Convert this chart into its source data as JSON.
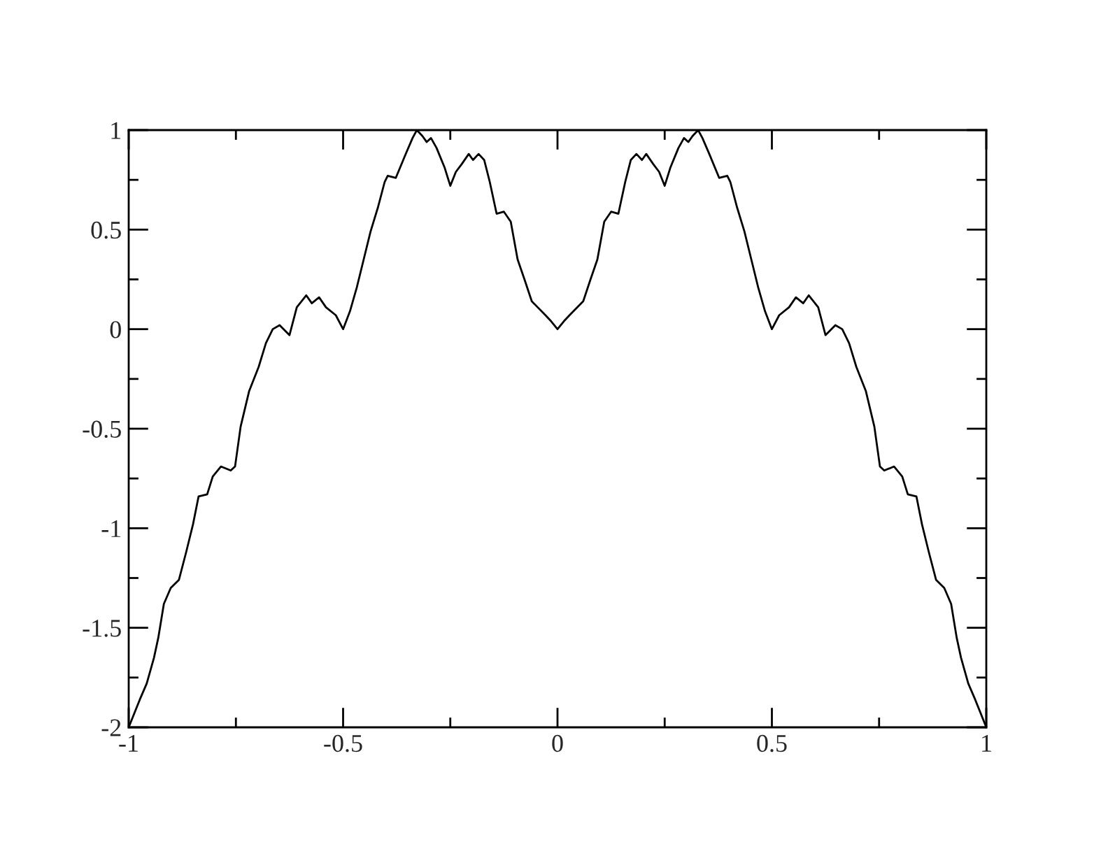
{
  "chart_data": {
    "type": "line",
    "x": [
      -1,
      -0.974,
      -0.958,
      -0.941,
      -0.931,
      -0.918,
      -0.902,
      -0.883,
      -0.866,
      -0.85,
      -0.837,
      -0.817,
      -0.804,
      -0.785,
      -0.762,
      -0.752,
      -0.739,
      -0.719,
      -0.697,
      -0.68,
      -0.664,
      -0.648,
      -0.625,
      -0.608,
      -0.586,
      -0.573,
      -0.556,
      -0.54,
      -0.517,
      -0.5,
      -0.484,
      -0.468,
      -0.452,
      -0.436,
      -0.419,
      -0.403,
      -0.396,
      -0.377,
      -0.354,
      -0.338,
      -0.328,
      -0.315,
      -0.305,
      -0.295,
      -0.282,
      -0.263,
      -0.25,
      -0.237,
      -0.223,
      -0.207,
      -0.197,
      -0.184,
      -0.171,
      -0.158,
      -0.142,
      -0.125,
      -0.109,
      -0.093,
      -0.077,
      -0.06,
      -0.028,
      -0.015,
      0,
      0.015,
      0.028,
      0.06,
      0.077,
      0.093,
      0.109,
      0.125,
      0.142,
      0.158,
      0.171,
      0.184,
      0.197,
      0.207,
      0.223,
      0.237,
      0.25,
      0.263,
      0.282,
      0.295,
      0.305,
      0.315,
      0.328,
      0.338,
      0.354,
      0.377,
      0.396,
      0.403,
      0.419,
      0.436,
      0.452,
      0.468,
      0.484,
      0.5,
      0.517,
      0.54,
      0.556,
      0.573,
      0.586,
      0.608,
      0.625,
      0.648,
      0.664,
      0.68,
      0.697,
      0.719,
      0.739,
      0.752,
      0.762,
      0.785,
      0.804,
      0.817,
      0.837,
      0.85,
      0.866,
      0.883,
      0.902,
      0.918,
      0.931,
      0.941,
      0.958,
      0.974,
      1
    ],
    "series": [
      {
        "color": "#000000",
        "values": [
          -2,
          -1.86,
          -1.78,
          -1.65,
          -1.55,
          -1.38,
          -1.3,
          -1.26,
          -1.12,
          -0.98,
          -0.84,
          -0.83,
          -0.74,
          -0.69,
          -0.71,
          -0.69,
          -0.49,
          -0.31,
          -0.19,
          -0.07,
          0,
          0.02,
          -0.03,
          0.11,
          0.17,
          0.13,
          0.16,
          0.11,
          0.07,
          0,
          0.09,
          0.21,
          0.35,
          0.49,
          0.61,
          0.74,
          0.77,
          0.76,
          0.88,
          0.96,
          1,
          0.97,
          0.94,
          0.96,
          0.91,
          0.81,
          0.72,
          0.79,
          0.83,
          0.88,
          0.85,
          0.88,
          0.85,
          0.74,
          0.58,
          0.59,
          0.54,
          0.35,
          0.25,
          0.14,
          0.07,
          0.04,
          0,
          0.04,
          0.07,
          0.14,
          0.25,
          0.35,
          0.54,
          0.59,
          0.58,
          0.74,
          0.85,
          0.88,
          0.85,
          0.88,
          0.83,
          0.79,
          0.72,
          0.81,
          0.91,
          0.96,
          0.94,
          0.97,
          1,
          0.96,
          0.88,
          0.76,
          0.77,
          0.74,
          0.61,
          0.49,
          0.35,
          0.21,
          0.09,
          0,
          0.07,
          0.11,
          0.16,
          0.13,
          0.17,
          0.11,
          -0.03,
          0.02,
          0,
          -0.07,
          -0.19,
          -0.31,
          -0.49,
          -0.69,
          -0.71,
          -0.69,
          -0.74,
          -0.83,
          -0.84,
          -0.98,
          -1.12,
          -1.26,
          -1.3,
          -1.38,
          -1.55,
          -1.65,
          -1.78,
          -1.86,
          -2
        ]
      }
    ],
    "xlim": [
      -1,
      1
    ],
    "xticks": [
      -1,
      {
        "value": -0.75,
        "label": null
      },
      -0.5,
      {
        "value": -0.25,
        "label": null
      },
      0,
      {
        "value": 0.25,
        "label": null
      },
      0.5,
      {
        "value": 0.75,
        "label": null
      },
      1
    ],
    "ylim": [
      -2,
      1
    ],
    "yticks": [
      -2,
      {
        "value": -1.75,
        "label": null
      },
      -1.5,
      {
        "value": -1.25,
        "label": null
      },
      -1,
      {
        "value": -0.75,
        "label": null
      },
      -0.5,
      {
        "value": -0.25,
        "label": null
      },
      0,
      {
        "value": 0.25,
        "label": null
      },
      0.5,
      {
        "value": 0.75,
        "label": null
      },
      1
    ],
    "grid": false,
    "legend": false,
    "marker": "none",
    "line_style": "solid"
  }
}
